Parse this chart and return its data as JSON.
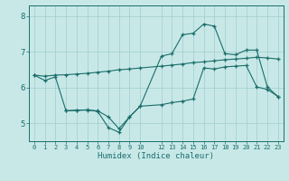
{
  "xlabel": "Humidex (Indice chaleur)",
  "bg_color": "#c8e8e8",
  "line_color": "#1a6e6a",
  "grid_color": "#a0cccc",
  "xlim": [
    -0.5,
    23.5
  ],
  "ylim": [
    4.5,
    8.3
  ],
  "yticks": [
    5,
    6,
    7,
    8
  ],
  "xtick_positions": [
    0,
    1,
    2,
    3,
    4,
    5,
    6,
    7,
    8,
    9,
    10,
    12,
    13,
    14,
    15,
    16,
    17,
    18,
    19,
    20,
    21,
    22,
    23
  ],
  "xtick_labels": [
    "0",
    "1",
    "2",
    "3",
    "4",
    "5",
    "6",
    "7",
    "8",
    "9",
    "10",
    "12",
    "13",
    "14",
    "15",
    "16",
    "17",
    "18",
    "19",
    "20",
    "21",
    "22",
    "23"
  ],
  "line1_x": [
    0,
    1,
    2,
    3,
    4,
    5,
    6,
    7,
    8,
    9,
    10,
    12,
    13,
    14,
    15,
    16,
    17,
    18,
    19,
    20,
    21,
    22,
    23
  ],
  "line1_y": [
    6.35,
    6.32,
    6.35,
    6.36,
    6.38,
    6.4,
    6.43,
    6.46,
    6.5,
    6.52,
    6.55,
    6.6,
    6.63,
    6.66,
    6.7,
    6.72,
    6.75,
    6.78,
    6.8,
    6.82,
    6.85,
    6.83,
    6.8
  ],
  "line2_x": [
    0,
    1,
    2,
    3,
    4,
    5,
    6,
    7,
    8,
    9,
    10,
    12,
    13,
    14,
    15,
    16,
    17,
    18,
    19,
    20,
    21,
    22,
    23
  ],
  "line2_y": [
    6.35,
    6.2,
    6.3,
    5.35,
    5.36,
    5.38,
    5.33,
    4.88,
    4.75,
    5.18,
    5.48,
    6.88,
    6.95,
    7.48,
    7.52,
    7.78,
    7.72,
    6.95,
    6.92,
    7.05,
    7.05,
    6.02,
    5.75
  ],
  "line3_x": [
    3,
    4,
    5,
    6,
    7,
    8,
    9,
    10,
    12,
    13,
    14,
    15,
    16,
    17,
    18,
    19,
    20,
    21,
    22,
    23
  ],
  "line3_y": [
    5.35,
    5.37,
    5.37,
    5.35,
    5.18,
    4.85,
    5.18,
    5.48,
    5.52,
    5.58,
    5.62,
    5.68,
    6.55,
    6.52,
    6.58,
    6.6,
    6.62,
    6.02,
    5.95,
    5.75
  ]
}
